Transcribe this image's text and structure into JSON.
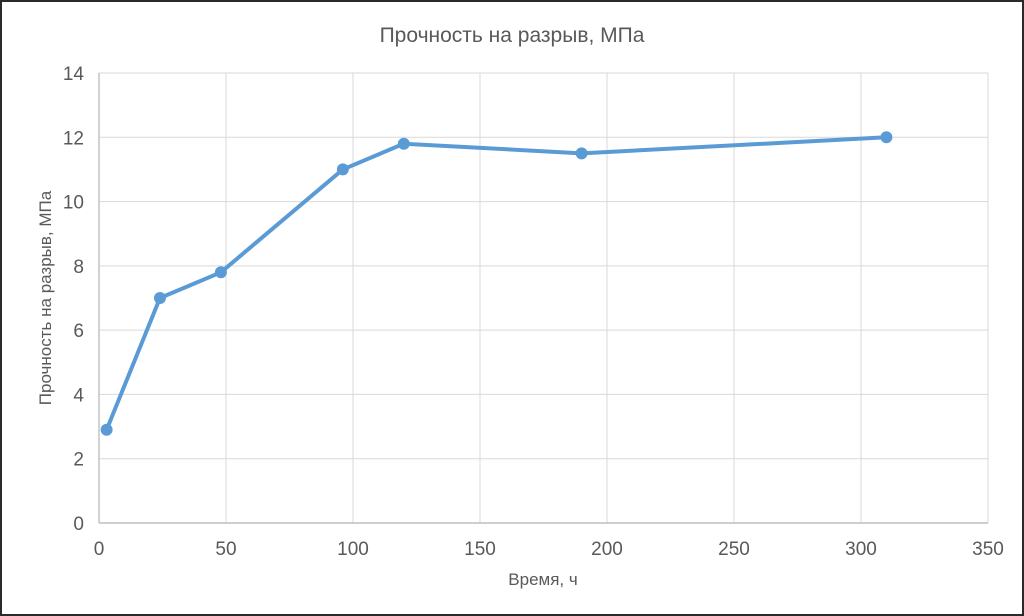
{
  "chart": {
    "title": "Прочность на разрыв, МПа",
    "x_axis_title": "Время, ч",
    "y_axis_title": "Прочность на разрыв, МПа"
  },
  "chart_data": {
    "type": "line",
    "title": "Прочность на разрыв, МПа",
    "xlabel": "Время, ч",
    "ylabel": "Прочность на разрыв, МПа",
    "x": [
      3,
      24,
      48,
      96,
      120,
      190,
      310
    ],
    "y": [
      2.9,
      7.0,
      7.8,
      11.0,
      11.8,
      11.5,
      12.0
    ],
    "xlim": [
      0,
      350
    ],
    "ylim": [
      0,
      14
    ],
    "xticks": [
      0,
      50,
      100,
      150,
      200,
      250,
      300,
      350
    ],
    "yticks": [
      0,
      2,
      4,
      6,
      8,
      10,
      12,
      14
    ],
    "grid": true,
    "legend": false,
    "line_color": "#5B9BD5",
    "marker": "circle",
    "marker_color": "#5B9BD5",
    "grid_color": "#D9D9D9",
    "axis_color": "#BFBFBF",
    "text_color": "#595959"
  }
}
